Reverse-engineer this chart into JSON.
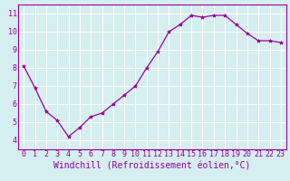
{
  "x": [
    0,
    1,
    2,
    3,
    4,
    5,
    6,
    7,
    8,
    9,
    10,
    11,
    12,
    13,
    14,
    15,
    16,
    17,
    18,
    19,
    20,
    21,
    22,
    23
  ],
  "y": [
    8.1,
    6.9,
    5.6,
    5.1,
    4.2,
    4.7,
    5.3,
    5.5,
    6.0,
    6.5,
    7.0,
    8.0,
    8.9,
    10.0,
    10.4,
    10.9,
    10.8,
    10.9,
    10.9,
    10.4,
    9.9,
    9.5,
    9.5,
    9.4
  ],
  "line_color": "#990099",
  "marker": "*",
  "marker_size": 3,
  "background_color": "#d5eef0",
  "grid_color": "#ffffff",
  "xlabel": "Windchill (Refroidissement éolien,°C)",
  "xlabel_color": "#990099",
  "tick_color": "#990099",
  "spine_color": "#990099",
  "xlim": [
    -0.5,
    23.5
  ],
  "ylim": [
    3.5,
    11.5
  ],
  "yticks": [
    4,
    5,
    6,
    7,
    8,
    9,
    10,
    11
  ],
  "xticks": [
    0,
    1,
    2,
    3,
    4,
    5,
    6,
    7,
    8,
    9,
    10,
    11,
    12,
    13,
    14,
    15,
    16,
    17,
    18,
    19,
    20,
    21,
    22,
    23
  ],
  "tick_label_fontsize": 6,
  "xlabel_fontsize": 7
}
